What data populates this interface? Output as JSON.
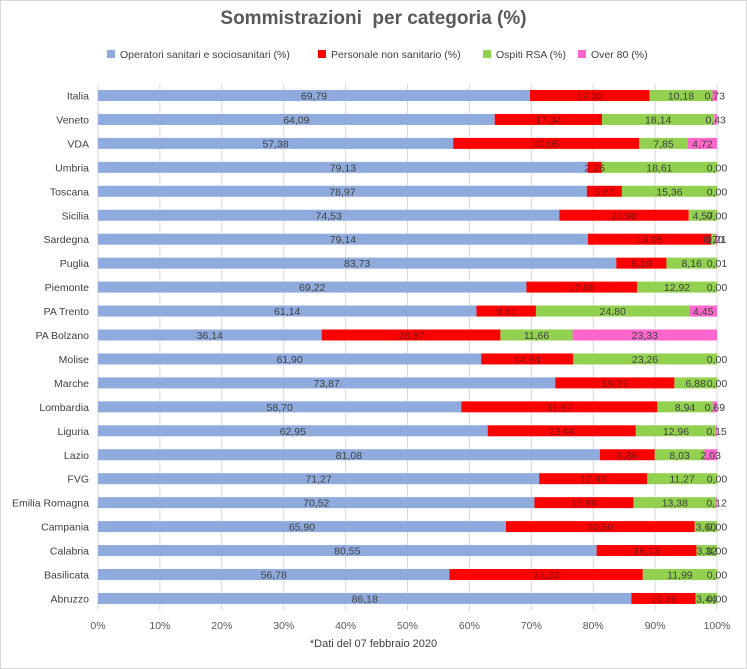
{
  "chart_data": {
    "type": "bar",
    "orientation": "horizontal",
    "stacked": true,
    "title": "Sommistrazioni  per categoria (%)",
    "footnote": "*Dati del 07 febbraio 2020",
    "xlim": [
      0,
      100
    ],
    "x_ticks": [
      "0%",
      "10%",
      "20%",
      "30%",
      "40%",
      "50%",
      "60%",
      "70%",
      "80%",
      "90%",
      "100%"
    ],
    "grid": "vertical",
    "legend_position": "top",
    "categories": [
      "Italia",
      "Veneto",
      "VDA",
      "Umbria",
      "Toscana",
      "Sicilia",
      "Sardegna",
      "Puglia",
      "Piemonte",
      "PA Trento",
      "PA Bolzano",
      "Molise",
      "Marche",
      "Lombardia",
      "Liguria",
      "Lazio",
      "FVG",
      "Emilia Romagna",
      "Campania",
      "Calabria",
      "Basilicata",
      "Abruzzo"
    ],
    "series": [
      {
        "name": "Operatori sanitari e sociosanitari (%)",
        "color": "#8faadc",
        "values": [
          69.79,
          64.09,
          57.38,
          79.13,
          78.97,
          74.53,
          79.14,
          83.73,
          69.22,
          61.14,
          36.14,
          61.9,
          73.87,
          58.7,
          62.95,
          81.08,
          71.27,
          70.52,
          65.9,
          80.55,
          56.78,
          86.18
        ],
        "labels": [
          "69,79",
          "64,09",
          "57,38",
          "79,13",
          "78,97",
          "74,53",
          "79,14",
          "83,73",
          "69,22",
          "61,14",
          "36,14",
          "61,90",
          "73,87",
          "58,70",
          "62,95",
          "81,08",
          "71,27",
          "70,52",
          "65,90",
          "80,55",
          "56,78",
          "86,18"
        ]
      },
      {
        "name": "Personale non sanitario (%)",
        "color": "#ff0000",
        "values": [
          19.3,
          17.34,
          30.05,
          2.26,
          5.67,
          20.9,
          19.95,
          8.1,
          17.86,
          9.61,
          28.87,
          14.84,
          19.25,
          31.67,
          23.94,
          8.86,
          17.46,
          15.98,
          30.5,
          16.13,
          31.23,
          10.38
        ],
        "labels": [
          "19,30",
          "17,34",
          "30,05",
          "2,26",
          "5,67",
          "20,90",
          "19,95",
          "8,10",
          "17,86",
          "9,61",
          "28,87",
          "14,84",
          "19,25",
          "31,67",
          "23,94",
          "8,86",
          "17,46",
          "15,98",
          "30,50",
          "16,13",
          "31,23",
          "10,38"
        ]
      },
      {
        "name": "Ospiti RSA (%)",
        "color": "#92d050",
        "values": [
          10.18,
          18.14,
          7.85,
          18.61,
          15.36,
          4.57,
          0.7,
          8.16,
          12.92,
          24.8,
          11.66,
          23.26,
          6.88,
          8.94,
          12.96,
          8.03,
          11.27,
          13.38,
          3.6,
          3.32,
          11.99,
          3.44
        ],
        "labels": [
          "10,18",
          "18,14",
          "7,85",
          "18,61",
          "15,36",
          "4,57",
          "0,70",
          "8,16",
          "12,92",
          "24,80",
          "11,66",
          "23,26",
          "6,88",
          "8,94",
          "12,96",
          "8,03",
          "11,27",
          "13,38",
          "3,60",
          "3,32",
          "11,99",
          "3,44"
        ]
      },
      {
        "name": "Over 80 (%)",
        "color": "#ff66cc",
        "values": [
          0.73,
          0.43,
          4.72,
          0.0,
          0.0,
          0.0,
          0.21,
          0.01,
          0.0,
          4.45,
          23.33,
          0.0,
          0.0,
          0.69,
          0.15,
          2.03,
          0.0,
          0.12,
          0.0,
          0.0,
          0.0,
          0.0
        ],
        "labels": [
          "0,73",
          "0,43",
          "4,72",
          "0,00",
          "0,00",
          "0,00",
          "0,21",
          "0,01",
          "0,00",
          "4,45",
          "23,33",
          "0,00",
          "0,00",
          "0,69",
          "0,15",
          "2,03",
          "0,00",
          "0,12",
          "0,00",
          "0,00",
          "0,00",
          "0,00"
        ]
      }
    ]
  }
}
